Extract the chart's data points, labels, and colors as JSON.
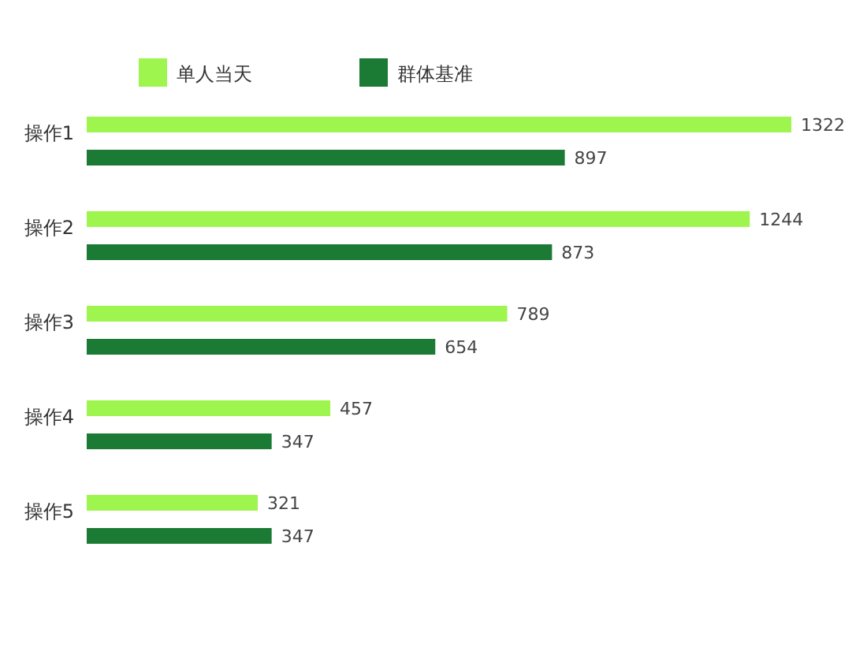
{
  "chart_data": {
    "type": "bar",
    "orientation": "horizontal",
    "categories": [
      "操作1",
      "操作2",
      "操作3",
      "操作4",
      "操作5"
    ],
    "series": [
      {
        "name": "单人当天",
        "color": "#9ef54e",
        "values": [
          1322,
          1244,
          789,
          457,
          321
        ]
      },
      {
        "name": "群体基准",
        "color": "#1b7a34",
        "values": [
          897,
          873,
          654,
          347,
          347
        ]
      }
    ],
    "data_labels": true,
    "legend": "top left"
  }
}
